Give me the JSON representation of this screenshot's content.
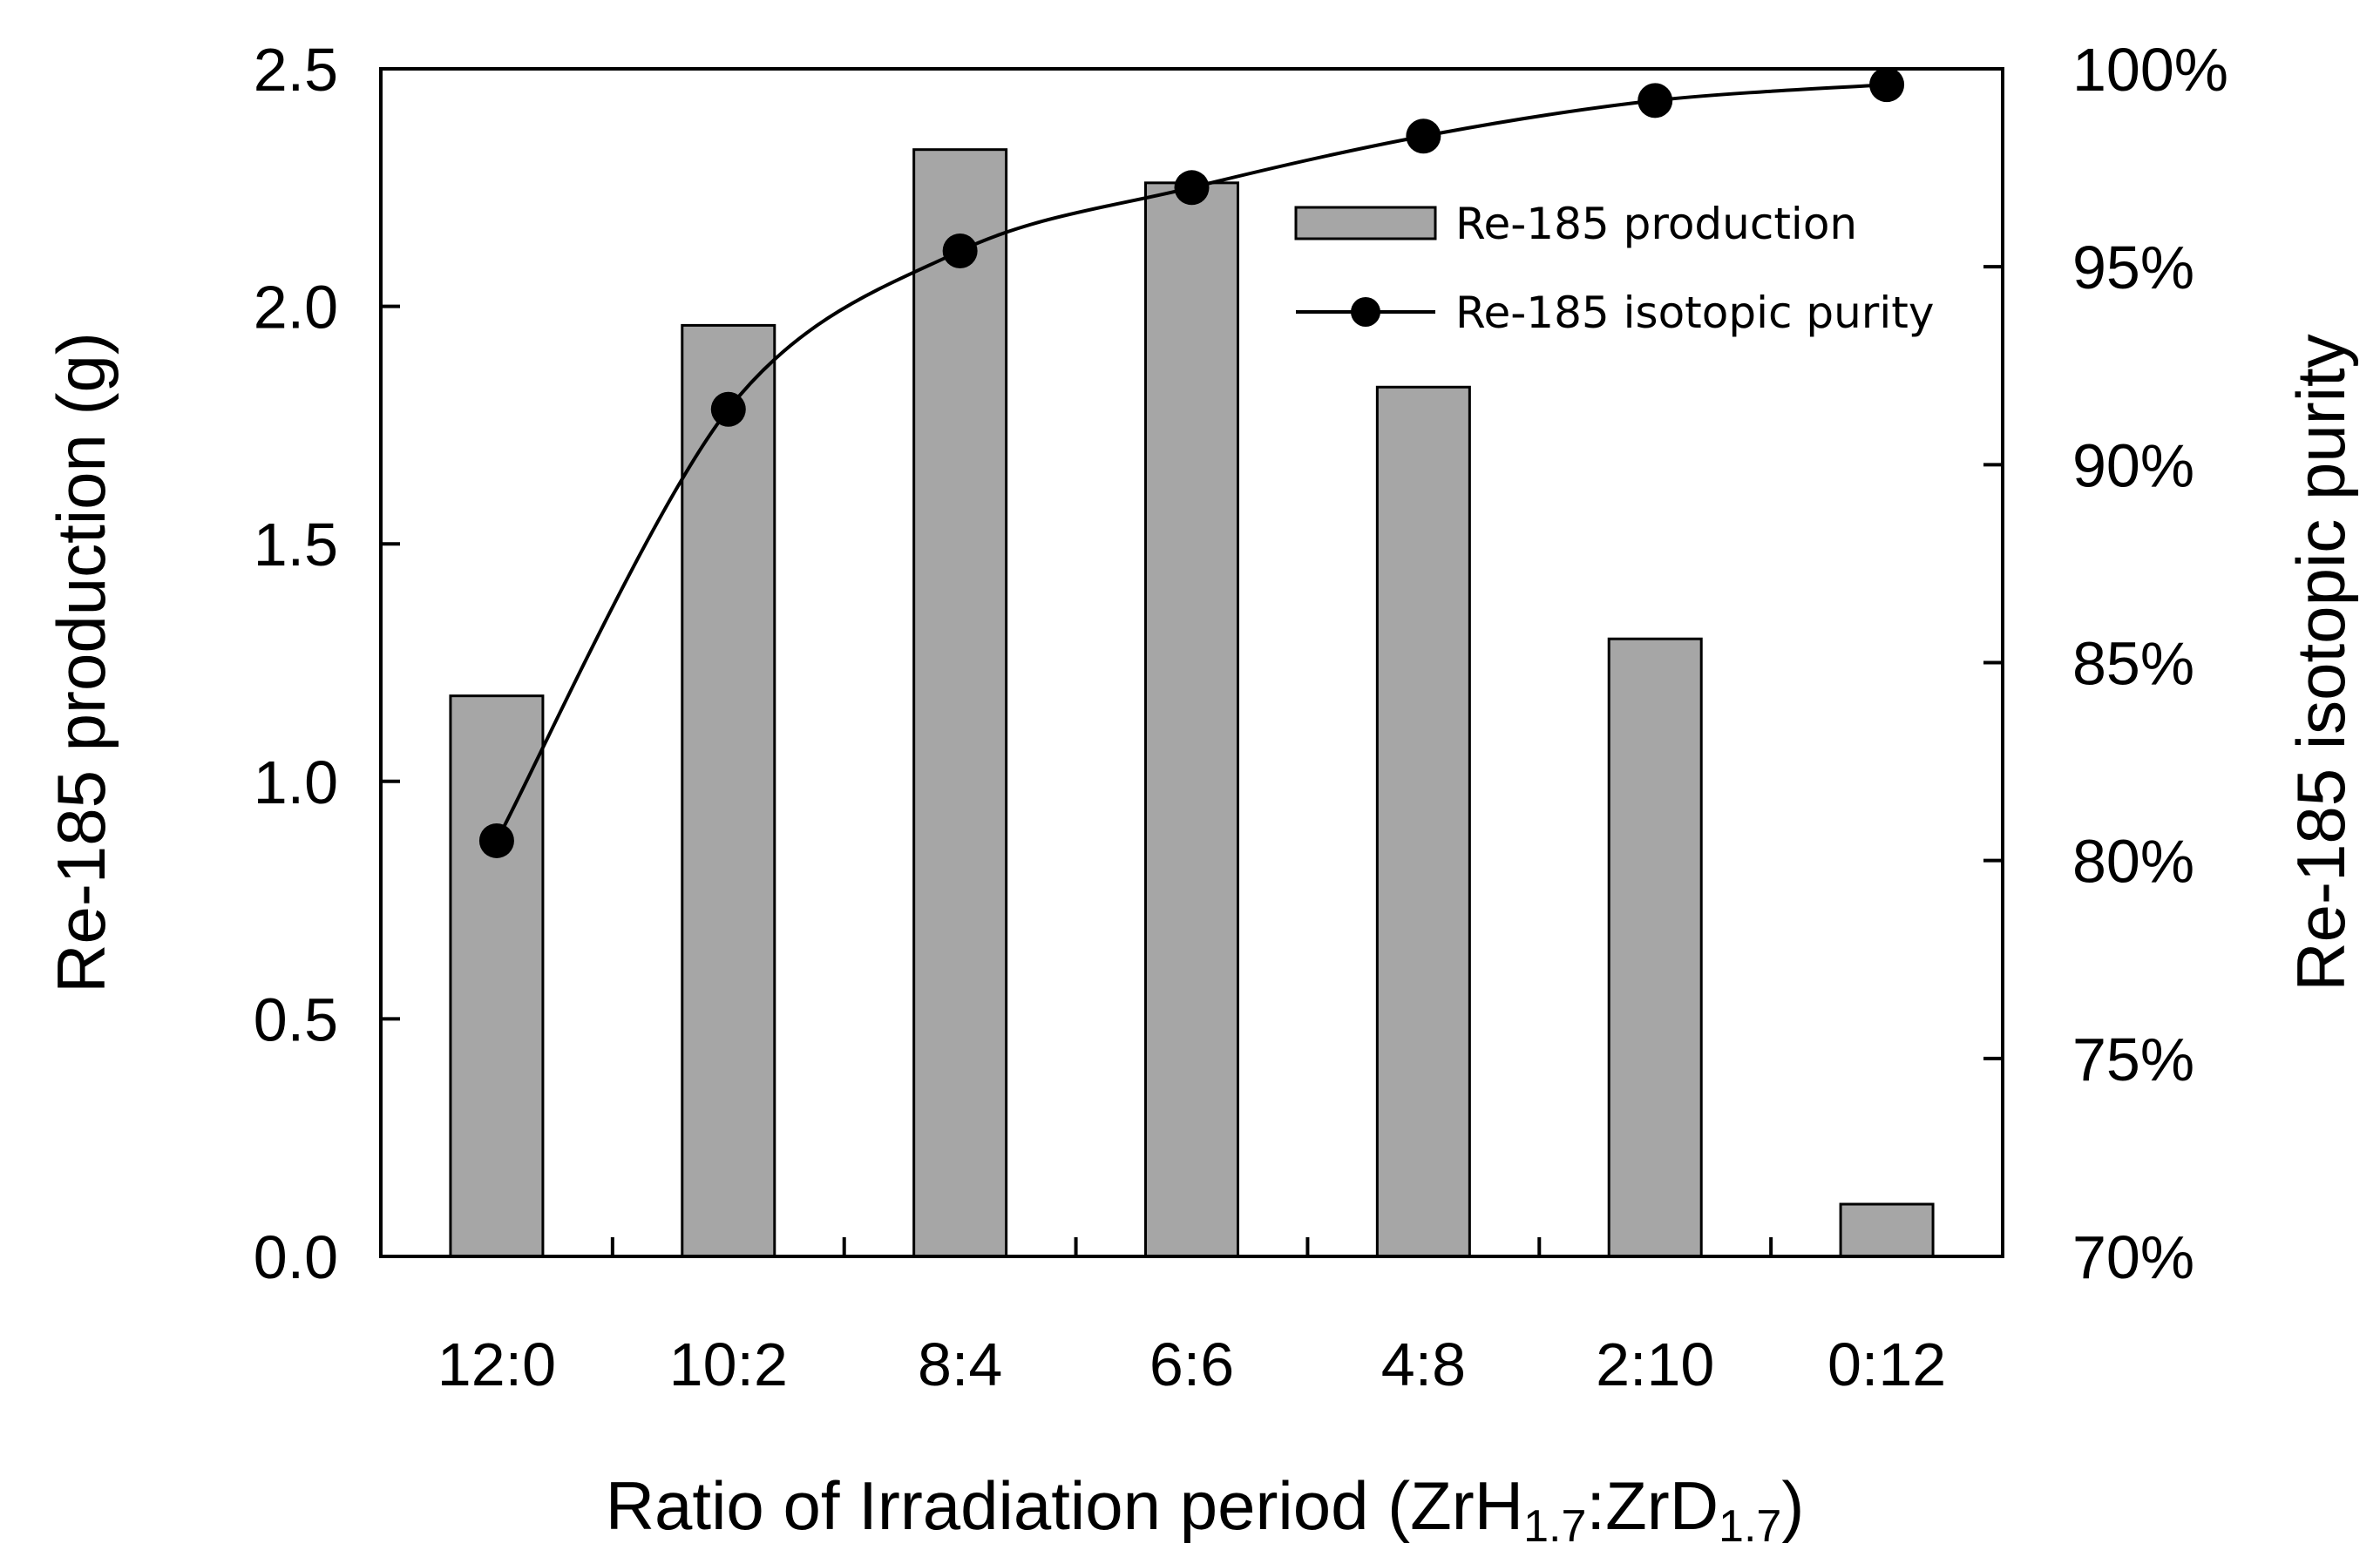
{
  "chart_data": {
    "type": "bar+line",
    "xlabel": "Ratio of Irradiation period (ZrH1.7 : ZrD1.7)",
    "xlabel_parts": {
      "prefix": "Ratio of Irradiation period (ZrH",
      "sub1": "1.7",
      "mid": ":ZrD",
      "sub2": "1.7",
      "suffix": ")"
    },
    "categories": [
      "12:0",
      "10:2",
      "8:4",
      "6:6",
      "4:8",
      "2:10",
      "0:12"
    ],
    "series": [
      {
        "name": "Re-185 production",
        "type": "bar",
        "axis": "left",
        "color": "#a6a6a6",
        "values": [
          1.18,
          1.96,
          2.33,
          2.26,
          1.83,
          1.3,
          0.11
        ]
      },
      {
        "name": "Re-185 isotopic purity",
        "type": "line",
        "axis": "right",
        "color": "#000000",
        "values": [
          80.5,
          91.4,
          95.4,
          97.0,
          98.3,
          99.2,
          99.6
        ]
      }
    ],
    "y_left": {
      "label": "Re-185 production (g)",
      "lim": [
        0,
        2.5
      ],
      "ticks": [
        0.0,
        0.5,
        1.0,
        1.5,
        2.0,
        2.5
      ],
      "tick_labels": [
        "0.0",
        "0.5",
        "1.0",
        "1.5",
        "2.0",
        "2.5"
      ]
    },
    "y_right": {
      "label": "Re-185 isotopic purity",
      "lim": [
        70,
        100
      ],
      "ticks": [
        70,
        75,
        80,
        85,
        90,
        95,
        100
      ],
      "tick_labels": [
        "70%",
        "75%",
        "80%",
        "85%",
        "90%",
        "95%",
        "100%"
      ]
    },
    "legend": {
      "placement": "top-right",
      "entries": [
        "Re-185 production",
        "Re-185 isotopic purity"
      ]
    },
    "grid": false
  }
}
